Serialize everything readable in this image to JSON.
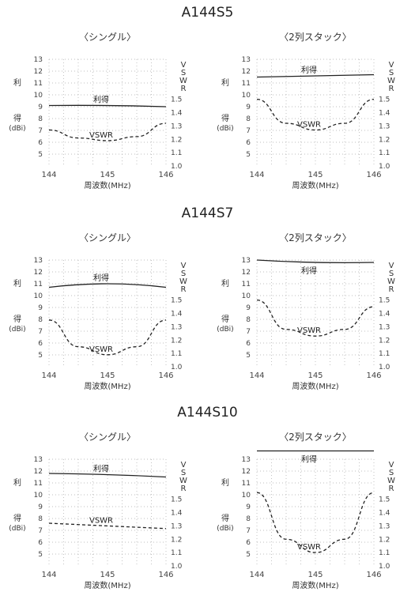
{
  "sections": [
    {
      "title": "A144S5"
    },
    {
      "title": "A144S7"
    },
    {
      "title": "A144S10"
    }
  ],
  "chart_data": [
    {
      "type": "line",
      "title": "A144S5",
      "subtitle": "〈シングル〉",
      "xlabel": "周波数(MHz)",
      "ylabel_left": "利得",
      "ylabel_unit": "(dBi)",
      "ylabel_right": "VSWR",
      "xlim": [
        144,
        146
      ],
      "ylim_left": [
        4,
        13
      ],
      "ylim_right": [
        1.0,
        1.8
      ],
      "x_ticks": [
        "144",
        "145",
        "146"
      ],
      "left_ticks": [
        "5",
        "6",
        "7",
        "8",
        "9",
        "10",
        "11",
        "12",
        "13"
      ],
      "right_ticks": [
        "1.0",
        "1.1",
        "1.2",
        "1.3",
        "1.4",
        "1.5"
      ],
      "gain_label": "利得",
      "vswr_label": "VSWR",
      "series": [
        {
          "name": "利得",
          "axis": "left",
          "style": "solid",
          "x": [
            144,
            145,
            146
          ],
          "y": [
            9.1,
            9.1,
            9.0
          ]
        },
        {
          "name": "VSWR",
          "axis": "right",
          "style": "dashed",
          "x": [
            144,
            144.5,
            145,
            145.5,
            146
          ],
          "y": [
            1.27,
            1.21,
            1.19,
            1.22,
            1.32
          ]
        }
      ]
    },
    {
      "type": "line",
      "title": "A144S5",
      "subtitle": "〈2列スタック〉",
      "xlabel": "周波数(MHz)",
      "ylabel_left": "利得",
      "ylabel_unit": "(dBi)",
      "ylabel_right": "VSWR",
      "xlim": [
        144,
        146
      ],
      "ylim_left": [
        4,
        13
      ],
      "ylim_right": [
        1.0,
        1.8
      ],
      "x_ticks": [
        "144",
        "145",
        "146"
      ],
      "left_ticks": [
        "5",
        "6",
        "7",
        "8",
        "9",
        "10",
        "11",
        "12",
        "13"
      ],
      "right_ticks": [
        "1.0",
        "1.1",
        "1.2",
        "1.3",
        "1.4",
        "1.5"
      ],
      "gain_label": "利得",
      "vswr_label": "VSWR",
      "series": [
        {
          "name": "利得",
          "axis": "left",
          "style": "solid",
          "x": [
            144,
            145,
            146
          ],
          "y": [
            11.5,
            11.6,
            11.7
          ]
        },
        {
          "name": "VSWR",
          "axis": "right",
          "style": "dashed",
          "x": [
            144,
            144.5,
            145,
            145.5,
            146
          ],
          "y": [
            1.5,
            1.32,
            1.27,
            1.32,
            1.5
          ]
        }
      ]
    },
    {
      "type": "line",
      "title": "A144S7",
      "subtitle": "〈シングル〉",
      "xlabel": "周波数(MHz)",
      "ylabel_left": "利得",
      "ylabel_unit": "(dBi)",
      "ylabel_right": "VSWR",
      "xlim": [
        144,
        146
      ],
      "ylim_left": [
        4,
        13
      ],
      "ylim_right": [
        1.0,
        1.8
      ],
      "x_ticks": [
        "144",
        "145",
        "146"
      ],
      "left_ticks": [
        "5",
        "6",
        "7",
        "8",
        "9",
        "10",
        "11",
        "12",
        "13"
      ],
      "right_ticks": [
        "1.0",
        "1.1",
        "1.2",
        "1.3",
        "1.4",
        "1.5"
      ],
      "gain_label": "利得",
      "vswr_label": "VSWR",
      "series": [
        {
          "name": "利得",
          "axis": "left",
          "style": "solid",
          "x": [
            144,
            145,
            146
          ],
          "y": [
            10.7,
            11.0,
            10.7
          ]
        },
        {
          "name": "VSWR",
          "axis": "right",
          "style": "dashed",
          "x": [
            144,
            144.5,
            145,
            145.5,
            146
          ],
          "y": [
            1.35,
            1.15,
            1.09,
            1.15,
            1.35
          ]
        }
      ]
    },
    {
      "type": "line",
      "title": "A144S7",
      "subtitle": "〈2列スタック〉",
      "xlabel": "周波数(MHz)",
      "ylabel_left": "利得",
      "ylabel_unit": "(dBi)",
      "ylabel_right": "VSWR",
      "xlim": [
        144,
        146
      ],
      "ylim_left": [
        4,
        13
      ],
      "ylim_right": [
        1.0,
        1.8
      ],
      "x_ticks": [
        "144",
        "145",
        "146"
      ],
      "left_ticks": [
        "5",
        "6",
        "7",
        "8",
        "9",
        "10",
        "11",
        "12",
        "13"
      ],
      "right_ticks": [
        "1.0",
        "1.1",
        "1.2",
        "1.3",
        "1.4",
        "1.5"
      ],
      "gain_label": "利得",
      "vswr_label": "VSWR",
      "series": [
        {
          "name": "利得",
          "axis": "left",
          "style": "solid",
          "x": [
            144,
            145,
            146
          ],
          "y": [
            13.0,
            12.8,
            12.8
          ]
        },
        {
          "name": "VSWR",
          "axis": "right",
          "style": "dashed",
          "x": [
            144,
            144.5,
            145,
            145.5,
            146
          ],
          "y": [
            1.5,
            1.28,
            1.23,
            1.28,
            1.45
          ]
        }
      ]
    },
    {
      "type": "line",
      "title": "A144S10",
      "subtitle": "〈シングル〉",
      "xlabel": "周波数(MHz)",
      "ylabel_left": "利得",
      "ylabel_unit": "(dBi)",
      "ylabel_right": "VSWR",
      "xlim": [
        144,
        146
      ],
      "ylim_left": [
        4,
        13
      ],
      "ylim_right": [
        1.0,
        1.8
      ],
      "x_ticks": [
        "144",
        "145",
        "146"
      ],
      "left_ticks": [
        "5",
        "6",
        "7",
        "8",
        "9",
        "10",
        "11",
        "12",
        "13"
      ],
      "right_ticks": [
        "1.0",
        "1.1",
        "1.2",
        "1.3",
        "1.4",
        "1.5"
      ],
      "gain_label": "利得",
      "vswr_label": "VSWR",
      "series": [
        {
          "name": "利得",
          "axis": "left",
          "style": "solid",
          "x": [
            144,
            145,
            146
          ],
          "y": [
            11.8,
            11.7,
            11.5
          ]
        },
        {
          "name": "VSWR",
          "axis": "right",
          "style": "dashed",
          "x": [
            144,
            145,
            146
          ],
          "y": [
            1.32,
            1.3,
            1.28
          ]
        }
      ]
    },
    {
      "type": "line",
      "title": "A144S10",
      "subtitle": "〈2列スタック〉",
      "xlabel": "周波数(MHz)",
      "ylabel_left": "利得",
      "ylabel_unit": "(dBi)",
      "ylabel_right": "VSWR",
      "xlim": [
        144,
        146
      ],
      "ylim_left": [
        4,
        13
      ],
      "ylim_right": [
        1.0,
        1.8
      ],
      "x_ticks": [
        "144",
        "145",
        "146"
      ],
      "left_ticks": [
        "5",
        "6",
        "7",
        "8",
        "9",
        "10",
        "11",
        "12",
        "13"
      ],
      "right_ticks": [
        "1.0",
        "1.1",
        "1.2",
        "1.3",
        "1.4",
        "1.5"
      ],
      "gain_label": "利得",
      "vswr_label": "VSWR",
      "series": [
        {
          "name": "利得",
          "axis": "left",
          "style": "solid",
          "x": [
            144,
            145,
            146
          ],
          "y": [
            13.7,
            13.7,
            13.7
          ]
        },
        {
          "name": "VSWR",
          "axis": "right",
          "style": "dashed",
          "x": [
            144,
            144.5,
            145,
            145.5,
            146
          ],
          "y": [
            1.55,
            1.2,
            1.1,
            1.2,
            1.55
          ]
        }
      ]
    }
  ]
}
